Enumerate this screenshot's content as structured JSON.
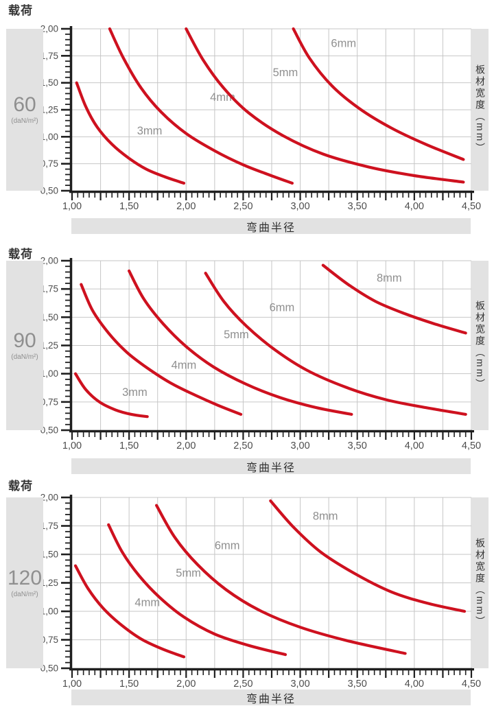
{
  "page": {
    "background": "#ffffff",
    "curve_color": "#ce111f",
    "grid_color": "#c6c6c6",
    "axis_color": "#1f1f1f",
    "panel_gray": "#e2e2e2",
    "tick_label_color": "#4d4d4d",
    "curve_label_color": "#8f8f8f"
  },
  "chart_data": [
    {
      "type": "line",
      "title_left": "载荷",
      "load_value": "60",
      "load_unit": "(daN/m²)",
      "xlabel": "弯曲半径",
      "ylabel_right": "板材宽度（mm）",
      "xlim": [
        1.0,
        4.5
      ],
      "ylim": [
        0.5,
        2.0
      ],
      "grid": true,
      "x_major_labels": [
        "1,00",
        "1,50",
        "2,00",
        "2,50",
        "3,00",
        "3,50",
        "4,00",
        "4,50"
      ],
      "y_major_labels": [
        "2,00",
        "1,75",
        "1,50",
        "1,25",
        "1,00",
        "0,75",
        "0,50"
      ],
      "series": [
        {
          "name": "3mm",
          "label_pos": [
            1.68,
            1.06
          ],
          "points": [
            [
              1.04,
              1.5
            ],
            [
              1.12,
              1.28
            ],
            [
              1.22,
              1.09
            ],
            [
              1.35,
              0.93
            ],
            [
              1.5,
              0.8
            ],
            [
              1.65,
              0.7
            ],
            [
              1.81,
              0.63
            ],
            [
              1.98,
              0.57
            ]
          ]
        },
        {
          "name": "4mm",
          "label_pos": [
            2.32,
            1.37
          ],
          "points": [
            [
              1.33,
              2.0
            ],
            [
              1.45,
              1.73
            ],
            [
              1.6,
              1.46
            ],
            [
              1.78,
              1.23
            ],
            [
              2.0,
              1.03
            ],
            [
              2.25,
              0.87
            ],
            [
              2.5,
              0.74
            ],
            [
              2.72,
              0.65
            ],
            [
              2.93,
              0.57
            ]
          ]
        },
        {
          "name": "5mm",
          "label_pos": [
            2.87,
            1.6
          ],
          "points": [
            [
              2.0,
              2.0
            ],
            [
              2.15,
              1.71
            ],
            [
              2.33,
              1.45
            ],
            [
              2.55,
              1.22
            ],
            [
              2.85,
              1.01
            ],
            [
              3.2,
              0.84
            ],
            [
              3.6,
              0.72
            ],
            [
              4.0,
              0.64
            ],
            [
              4.43,
              0.58
            ]
          ]
        },
        {
          "name": "6mm",
          "label_pos": [
            3.38,
            1.87
          ],
          "points": [
            [
              2.94,
              2.0
            ],
            [
              3.08,
              1.73
            ],
            [
              3.28,
              1.47
            ],
            [
              3.52,
              1.26
            ],
            [
              3.8,
              1.08
            ],
            [
              4.1,
              0.93
            ],
            [
              4.43,
              0.79
            ]
          ]
        }
      ]
    },
    {
      "type": "line",
      "title_left": "载荷",
      "load_value": "90",
      "load_unit": "(daN/m²)",
      "xlabel": "弯曲半径",
      "ylabel_right": "板材宽度（mm）",
      "xlim": [
        1.0,
        4.5
      ],
      "ylim": [
        0.5,
        2.0
      ],
      "grid": true,
      "x_major_labels": [
        "1,00",
        "1,50",
        "2,00",
        "2,50",
        "3,00",
        "3,50",
        "4,00",
        "4,50"
      ],
      "y_major_labels": [
        "2,00",
        "1,75",
        "1,50",
        "1,25",
        "1,00",
        "0,75",
        "0,50"
      ],
      "series": [
        {
          "name": "3mm",
          "label_pos": [
            1.55,
            0.84
          ],
          "points": [
            [
              1.03,
              1.0
            ],
            [
              1.12,
              0.86
            ],
            [
              1.24,
              0.75
            ],
            [
              1.38,
              0.68
            ],
            [
              1.52,
              0.64
            ],
            [
              1.66,
              0.62
            ]
          ]
        },
        {
          "name": "4mm",
          "label_pos": [
            1.98,
            1.08
          ],
          "points": [
            [
              1.08,
              1.79
            ],
            [
              1.18,
              1.56
            ],
            [
              1.32,
              1.36
            ],
            [
              1.48,
              1.19
            ],
            [
              1.66,
              1.05
            ],
            [
              1.86,
              0.92
            ],
            [
              2.08,
              0.81
            ],
            [
              2.28,
              0.72
            ],
            [
              2.48,
              0.64
            ]
          ]
        },
        {
          "name": "5mm",
          "label_pos": [
            2.44,
            1.35
          ],
          "points": [
            [
              1.5,
              1.91
            ],
            [
              1.63,
              1.66
            ],
            [
              1.8,
              1.44
            ],
            [
              2.0,
              1.24
            ],
            [
              2.24,
              1.06
            ],
            [
              2.52,
              0.91
            ],
            [
              2.82,
              0.79
            ],
            [
              3.14,
              0.7
            ],
            [
              3.45,
              0.64
            ]
          ]
        },
        {
          "name": "6mm",
          "label_pos": [
            2.84,
            1.59
          ],
          "points": [
            [
              2.17,
              1.89
            ],
            [
              2.33,
              1.64
            ],
            [
              2.53,
              1.42
            ],
            [
              2.78,
              1.21
            ],
            [
              3.06,
              1.03
            ],
            [
              3.4,
              0.88
            ],
            [
              3.75,
              0.77
            ],
            [
              4.1,
              0.7
            ],
            [
              4.45,
              0.64
            ]
          ]
        },
        {
          "name": "8mm",
          "label_pos": [
            3.78,
            1.85
          ],
          "points": [
            [
              3.2,
              1.96
            ],
            [
              3.42,
              1.79
            ],
            [
              3.66,
              1.64
            ],
            [
              3.92,
              1.53
            ],
            [
              4.18,
              1.44
            ],
            [
              4.45,
              1.36
            ]
          ]
        }
      ]
    },
    {
      "type": "line",
      "title_left": "载荷",
      "load_value": "120",
      "load_unit": "(daN/m²)",
      "xlabel": "弯曲半径",
      "ylabel_right": "板材宽度（mm）",
      "xlim": [
        1.0,
        4.5
      ],
      "ylim": [
        0.5,
        2.0
      ],
      "grid": true,
      "x_major_labels": [
        "1,00",
        "1,50",
        "2,00",
        "2,50",
        "3,00",
        "3,50",
        "4,00",
        "4,50"
      ],
      "y_major_labels": [
        "2,00",
        "1,75",
        "1,50",
        "1,25",
        "1,00",
        "0,75",
        "0,50"
      ],
      "series": [
        {
          "name": "4mm",
          "label_pos": [
            1.66,
            1.08
          ],
          "points": [
            [
              1.03,
              1.4
            ],
            [
              1.14,
              1.2
            ],
            [
              1.27,
              1.03
            ],
            [
              1.42,
              0.89
            ],
            [
              1.6,
              0.76
            ],
            [
              1.79,
              0.67
            ],
            [
              1.98,
              0.6
            ]
          ]
        },
        {
          "name": "5mm",
          "label_pos": [
            2.02,
            1.34
          ],
          "points": [
            [
              1.32,
              1.76
            ],
            [
              1.44,
              1.52
            ],
            [
              1.59,
              1.31
            ],
            [
              1.77,
              1.12
            ],
            [
              1.98,
              0.95
            ],
            [
              2.25,
              0.8
            ],
            [
              2.55,
              0.7
            ],
            [
              2.87,
              0.62
            ]
          ]
        },
        {
          "name": "6mm",
          "label_pos": [
            2.36,
            1.58
          ],
          "points": [
            [
              1.74,
              1.93
            ],
            [
              1.9,
              1.65
            ],
            [
              2.1,
              1.41
            ],
            [
              2.35,
              1.19
            ],
            [
              2.64,
              1.01
            ],
            [
              3.0,
              0.86
            ],
            [
              3.42,
              0.74
            ],
            [
              3.92,
              0.63
            ]
          ]
        },
        {
          "name": "8mm",
          "label_pos": [
            3.22,
            1.84
          ],
          "points": [
            [
              2.74,
              1.97
            ],
            [
              2.94,
              1.74
            ],
            [
              3.18,
              1.52
            ],
            [
              3.48,
              1.33
            ],
            [
              3.8,
              1.17
            ],
            [
              4.12,
              1.07
            ],
            [
              4.44,
              1.0
            ]
          ]
        }
      ]
    }
  ]
}
